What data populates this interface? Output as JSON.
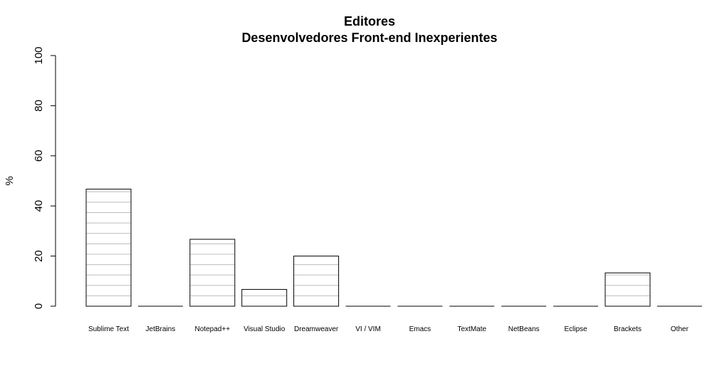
{
  "chart_data": {
    "type": "bar",
    "title": "Editores",
    "subtitle": "Desenvolvedores Front-end Inexperientes",
    "xlabel": "",
    "ylabel": "%",
    "ylim": [
      0,
      100
    ],
    "yticks": [
      "0",
      "20",
      "40",
      "60",
      "80",
      "100"
    ],
    "grid": false,
    "hatch_lines": true,
    "bar_fill": "#ffffff",
    "bar_stroke": "#000000",
    "hatch_color": "#bdbdbd",
    "categories": [
      "Sublime Text",
      "JetBrains",
      "Notepad++",
      "Visual Studio",
      "Dreamweaver",
      "VI / VIM",
      "Emacs",
      "TextMate",
      "NetBeans",
      "Eclipse",
      "Brackets",
      "Other"
    ],
    "values": [
      46.7,
      0,
      26.7,
      6.7,
      20.0,
      0,
      0,
      0,
      0,
      0,
      13.3,
      0
    ]
  }
}
